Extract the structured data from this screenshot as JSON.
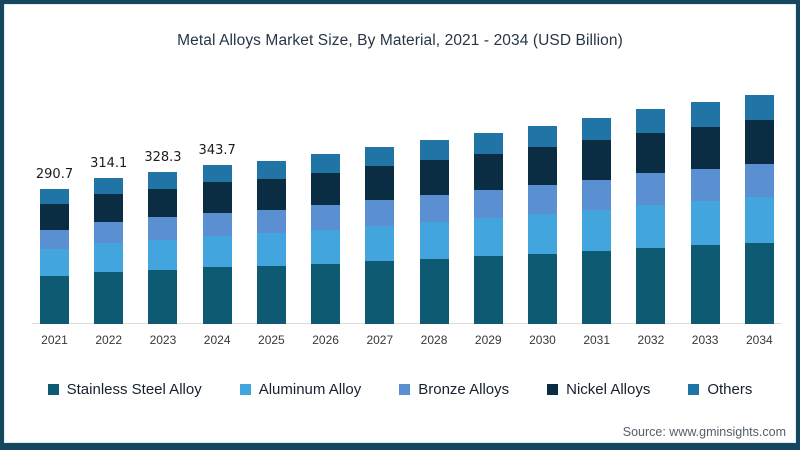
{
  "title": "Metal Alloys Market Size, By Material, 2021 - 2034 (USD Billion)",
  "source": "Source: www.gminsights.com",
  "frame": {
    "border_color": "#15485f",
    "background": "#ffffff"
  },
  "chart_data": {
    "type": "bar",
    "stacked": true,
    "title": "Metal Alloys Market Size, By Material, 2021 - 2034 (USD Billion)",
    "xlabel": "",
    "ylabel": "USD Billion",
    "ylim": [
      0,
      510
    ],
    "grid": false,
    "legend_position": "bottom",
    "categories": [
      "2021",
      "2022",
      "2023",
      "2024",
      "2025",
      "2026",
      "2027",
      "2028",
      "2029",
      "2030",
      "2031",
      "2032",
      "2033",
      "2034"
    ],
    "totals": [
      290.7,
      314.1,
      328.3,
      343.7,
      352,
      367,
      382,
      398,
      413,
      428,
      445,
      464,
      478,
      494
    ],
    "value_labels": [
      "290.7",
      "314.1",
      "328.3",
      "343.7",
      "",
      "",
      "",
      "",
      "",
      "",
      "",
      "",
      "",
      ""
    ],
    "series": [
      {
        "name": "Stainless Steel Alloy",
        "color": "#0e5a72",
        "values": [
          103.2,
          111.5,
          116.5,
          122.1,
          125.0,
          130.3,
          135.6,
          141.3,
          146.6,
          151.9,
          157.9,
          164.7,
          169.7,
          175.4
        ]
      },
      {
        "name": "Aluminum Alloy",
        "color": "#42a5de",
        "values": [
          58.1,
          62.8,
          65.7,
          68.7,
          70.4,
          73.4,
          76.4,
          79.6,
          82.6,
          85.6,
          89.0,
          92.8,
          95.6,
          98.8
        ]
      },
      {
        "name": "Bronze Alloys",
        "color": "#5a8fd1",
        "values": [
          42.2,
          45.5,
          47.6,
          49.8,
          51.0,
          53.2,
          55.4,
          57.7,
          59.9,
          62.1,
          64.5,
          67.3,
          69.3,
          71.6
        ]
      },
      {
        "name": "Nickel Alloys",
        "color": "#0b2d44",
        "values": [
          55.2,
          59.7,
          62.4,
          65.3,
          66.9,
          69.7,
          72.6,
          75.6,
          78.5,
          81.3,
          84.6,
          88.2,
          90.8,
          93.9
        ]
      },
      {
        "name": "Others",
        "color": "#2174a6",
        "values": [
          32.0,
          34.6,
          36.1,
          37.8,
          38.7,
          40.4,
          42.0,
          43.8,
          45.4,
          47.1,
          49.0,
          51.0,
          52.6,
          54.3
        ]
      }
    ]
  }
}
